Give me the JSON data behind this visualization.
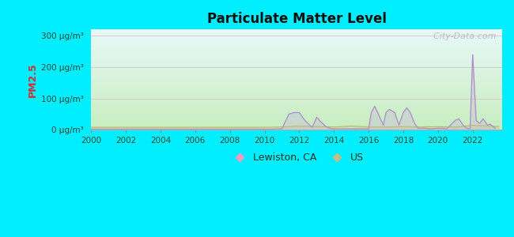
{
  "title": "Particulate Matter Level",
  "ylabel": "PM2.5",
  "background_color": "#00eeff",
  "ylim": [
    0,
    320
  ],
  "yticks": [
    0,
    100,
    200,
    300
  ],
  "ytick_labels": [
    "0 μg/m³",
    "100 μg/m³",
    "200 μg/m³",
    "300 μg/m³"
  ],
  "xstart": 2000,
  "xend": 2023.7,
  "xticks": [
    2000,
    2002,
    2004,
    2006,
    2008,
    2010,
    2012,
    2014,
    2016,
    2018,
    2020,
    2022
  ],
  "lewiston_color": "#b090cc",
  "us_color": "#bbbb66",
  "lewiston_fill": "#c8a8e0",
  "us_fill": "#cccc88",
  "watermark": "  City-Data.com",
  "legend_lewiston": "Lewiston, CA",
  "legend_us": "US",
  "legend_marker_lewiston": "#ff99bb",
  "legend_marker_us": "#ccbb88",
  "grid_color": "#ddbbcc",
  "plot_bg_bottom": "#c8eec0",
  "plot_bg_top": "#e8f8f8",
  "lewiston_x": [
    2000,
    2001,
    2002,
    2003,
    2004,
    2005,
    2006,
    2007,
    2008,
    2009,
    2010,
    2010.5,
    2011,
    2011.4,
    2011.7,
    2012,
    2012.25,
    2012.5,
    2012.75,
    2013,
    2013.25,
    2013.5,
    2013.75,
    2014,
    2014.25,
    2014.75,
    2015,
    2015.5,
    2016,
    2016.15,
    2016.35,
    2016.6,
    2016.85,
    2017,
    2017.2,
    2017.5,
    2017.75,
    2018,
    2018.2,
    2018.4,
    2018.65,
    2018.85,
    2019,
    2019.25,
    2019.5,
    2020,
    2020.25,
    2020.5,
    2021,
    2021.2,
    2021.45,
    2021.65,
    2021.85,
    2022,
    2022.2,
    2022.4,
    2022.6,
    2022.85,
    2023,
    2023.3
  ],
  "lewiston_y": [
    2,
    2,
    2,
    2,
    2,
    2,
    2,
    2,
    2,
    2,
    2,
    2,
    3,
    50,
    55,
    55,
    35,
    20,
    8,
    40,
    25,
    12,
    5,
    3,
    3,
    3,
    3,
    3,
    3,
    55,
    75,
    45,
    15,
    55,
    65,
    55,
    15,
    55,
    70,
    55,
    20,
    5,
    5,
    5,
    3,
    5,
    5,
    3,
    30,
    35,
    15,
    5,
    3,
    240,
    30,
    20,
    35,
    15,
    18,
    5
  ],
  "us_x": [
    2000,
    2001,
    2002,
    2003,
    2004,
    2005,
    2006,
    2007,
    2008,
    2009,
    2010,
    2011,
    2012,
    2013,
    2014,
    2015,
    2016,
    2017,
    2018,
    2019,
    2020,
    2021,
    2022,
    2023,
    2023.5
  ],
  "us_y": [
    8,
    8,
    8,
    8,
    8,
    8,
    8,
    8,
    8,
    8,
    8,
    9,
    12,
    10,
    9,
    12,
    9,
    9,
    10,
    9,
    10,
    9,
    14,
    12,
    10
  ]
}
